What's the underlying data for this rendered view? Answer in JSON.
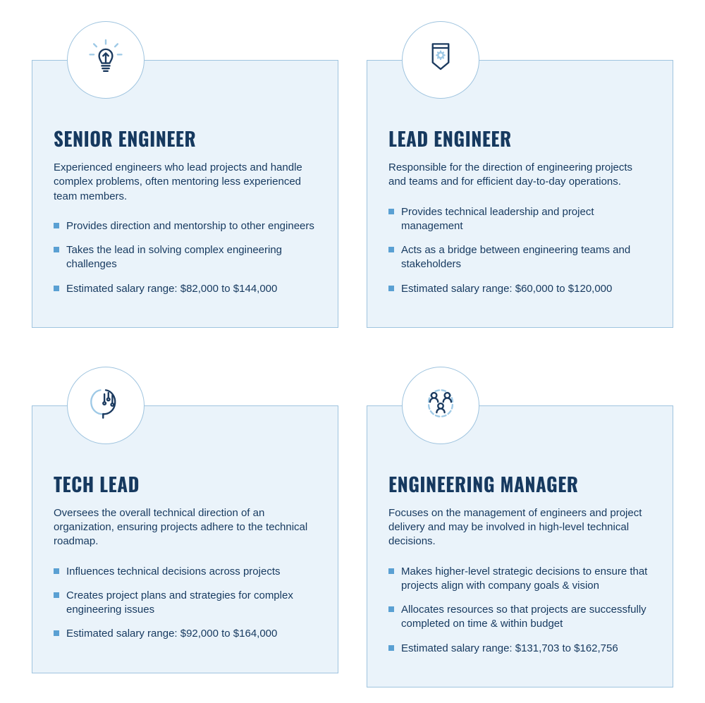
{
  "colors": {
    "text": "#16395f",
    "card_bg": "#eaf3fa",
    "border": "#9fc4df",
    "bullet": "#5aa0d3",
    "icon_dark": "#1b3a5f",
    "icon_light": "#9ec9e6"
  },
  "typography": {
    "title_fontsize": 27,
    "body_fontsize": 15
  },
  "layout": {
    "columns": 2,
    "rows": 2,
    "icon_circle_diameter": 110
  },
  "cards": [
    {
      "icon": "lightbulb",
      "title": "SENIOR ENGINEER",
      "description": "Experienced engineers who lead projects and handle complex problems, often mentoring less experienced team members.",
      "bullets": [
        "Provides direction and mentorship to other engineers",
        "Takes the lead in solving complex engineering challenges",
        "Estimated salary range: $82,000 to $144,000"
      ]
    },
    {
      "icon": "badge",
      "title": "LEAD ENGINEER",
      "description": "Responsible for the direction of engineering projects and teams and for efficient day-to-day operations.",
      "bullets": [
        "Provides technical leadership and project management",
        "Acts as a bridge between engineering teams and stakeholders",
        "Estimated salary range: $60,000 to $120,000"
      ]
    },
    {
      "icon": "ai-head",
      "title": "TECH LEAD",
      "description": "Oversees the overall technical direction of an organization, ensuring projects adhere to the technical roadmap.",
      "bullets": [
        "Influences technical decisions across projects",
        "Creates project plans and strategies for complex engineering issues",
        "Estimated salary range: $92,000 to $164,000"
      ]
    },
    {
      "icon": "team",
      "title": "ENGINEERING MANAGER",
      "description": "Focuses on the management of engineers and project delivery and may be involved in high-level technical decisions.",
      "bullets": [
        "Makes higher-level strategic decisions to ensure that projects align with company goals & vision",
        "Allocates resources so that projects are successfully completed on time & within budget",
        "Estimated salary range: $131,703 to $162,756"
      ]
    }
  ]
}
